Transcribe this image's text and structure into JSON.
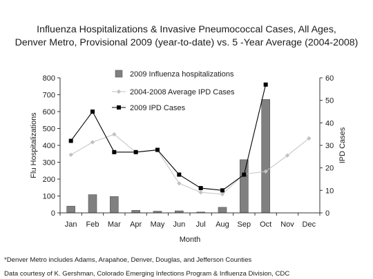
{
  "title_line1": "Influenza Hospitalizations & Invasive Pneumococcal Cases, All Ages,",
  "title_line2": "Denver Metro, Provisional 2009 (year-to-date) vs. 5 -Year Average (2004-2008)",
  "footnote": "*Denver Metro includes Adams, Arapahoe, Denver, Douglas, and Jefferson Counties",
  "credit": "Data courtesy of K. Gershman, Colorado Emerging Infections Program & Influenza Division, CDC",
  "chart_data": {
    "type": "bar",
    "xlabel": "Month",
    "ylabel_left": "Flu Hospitalizations",
    "ylabel_right": "IPD Cases",
    "categories": [
      "Jan",
      "Feb",
      "Mar",
      "Apr",
      "May",
      "Jun",
      "Jul",
      "Aug",
      "Sep",
      "Oct",
      "Nov",
      "Dec"
    ],
    "ylim_left": [
      0,
      800
    ],
    "yticks_left": [
      0,
      100,
      200,
      300,
      400,
      500,
      600,
      700,
      800
    ],
    "ylim_right": [
      0,
      60
    ],
    "yticks_right": [
      0,
      10,
      20,
      30,
      40,
      50,
      60
    ],
    "grid": false,
    "legend_position": "top-center",
    "series": [
      {
        "name": "2009 Influenza hospitalizations",
        "type": "bar",
        "axis": "left",
        "color": "#808080",
        "values": [
          40,
          108,
          97,
          15,
          10,
          12,
          5,
          33,
          315,
          672,
          null,
          null
        ]
      },
      {
        "name": "2004-2008 Average IPD Cases",
        "type": "line",
        "axis": "right",
        "marker": "diamond",
        "color": "#c2c2c2",
        "values": [
          25.8,
          31.4,
          34.9,
          26.9,
          27.8,
          13.1,
          9.1,
          8.3,
          17.2,
          18.4,
          25.5,
          33.1
        ]
      },
      {
        "name": "2009 IPD Cases",
        "type": "line",
        "axis": "right",
        "marker": "square",
        "color": "#000000",
        "values": [
          32,
          45,
          27,
          27,
          28,
          17,
          11,
          10,
          17,
          57,
          null,
          null
        ]
      }
    ]
  }
}
